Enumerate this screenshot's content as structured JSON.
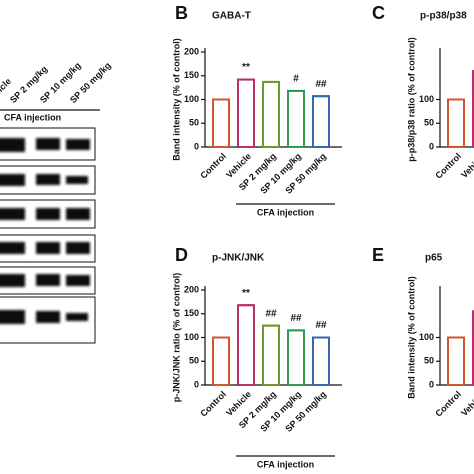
{
  "blot": {
    "lanes": [
      "Vehicle",
      "SP 2 mg/kg",
      "SP 10 mg/kg",
      "SP 50 mg/kg"
    ],
    "group_label": "CFA injection"
  },
  "chart_data": [
    {
      "type": "bar",
      "panel": "B",
      "title": "GABA-T",
      "y_label": "Band intensity (% of control)",
      "categories": [
        "Control",
        "Vehicle",
        "SP 2 mg/kg",
        "SP 10 mg/kg",
        "SP 50 mg/kg"
      ],
      "values": [
        100,
        142,
        137,
        118,
        107
      ],
      "colors": [
        "#d2552f",
        "#b8306b",
        "#6a9a2e",
        "#2f9a55",
        "#3467b0"
      ],
      "ylim": [
        0,
        200
      ],
      "yticks": [
        0,
        50,
        100,
        150,
        200
      ],
      "annotations": [
        {
          "category": "Vehicle",
          "text": "**"
        },
        {
          "category": "SP 10 mg/kg",
          "text": "#"
        },
        {
          "category": "SP 50 mg/kg",
          "text": "##"
        }
      ],
      "group_label": "CFA injection"
    },
    {
      "type": "bar",
      "panel": "C",
      "title": "p-p38/p38",
      "y_label": "p-p38/p38 ratio (% of control)",
      "categories": [
        "Control",
        "Vehicle"
      ],
      "values": [
        100,
        160
      ],
      "colors": [
        "#d2552f",
        "#b8306b"
      ],
      "ylim": [
        0,
        200
      ],
      "yticks": [
        0,
        50,
        100
      ]
    },
    {
      "type": "bar",
      "panel": "D",
      "title": "p-JNK/JNK",
      "y_label": "p-JNK/JNK ratio (% of control)",
      "categories": [
        "Control",
        "Vehicle",
        "SP 2 mg/kg",
        "SP 10 mg/kg",
        "SP 50 mg/kg"
      ],
      "values": [
        100,
        168,
        125,
        115,
        100
      ],
      "colors": [
        "#d2552f",
        "#b8306b",
        "#6a9a2e",
        "#2f9a55",
        "#3467b0"
      ],
      "ylim": [
        0,
        200
      ],
      "yticks": [
        0,
        50,
        100,
        150,
        200
      ],
      "annotations": [
        {
          "category": "Vehicle",
          "text": "**"
        },
        {
          "category": "SP 2 mg/kg",
          "text": "##"
        },
        {
          "category": "SP 10 mg/kg",
          "text": "##"
        },
        {
          "category": "SP 50 mg/kg",
          "text": "##"
        }
      ],
      "group_label": "CFA injection"
    },
    {
      "type": "bar",
      "panel": "E",
      "title": "p65",
      "y_label": "Band intensity (% of control)",
      "categories": [
        "Control",
        "Vehicle"
      ],
      "values": [
        100,
        155
      ],
      "colors": [
        "#d2552f",
        "#b8306b"
      ],
      "ylim": [
        0,
        200
      ],
      "yticks": [
        0,
        50,
        100
      ]
    }
  ]
}
